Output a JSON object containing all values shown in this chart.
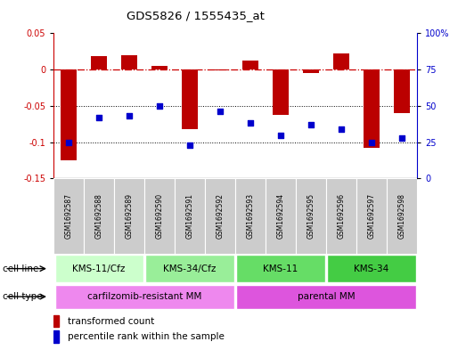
{
  "title": "GDS5826 / 1555435_at",
  "samples": [
    "GSM1692587",
    "GSM1692588",
    "GSM1692589",
    "GSM1692590",
    "GSM1692591",
    "GSM1692592",
    "GSM1692593",
    "GSM1692594",
    "GSM1692595",
    "GSM1692596",
    "GSM1692597",
    "GSM1692598"
  ],
  "bar_values": [
    -0.125,
    0.018,
    0.02,
    0.005,
    -0.082,
    -0.001,
    0.013,
    -0.062,
    -0.005,
    0.022,
    -0.108,
    -0.06
  ],
  "dot_values": [
    25,
    42,
    43,
    50,
    23,
    46,
    38,
    30,
    37,
    34,
    25,
    28
  ],
  "bar_color": "#bb0000",
  "dot_color": "#0000cc",
  "ylim_left": [
    -0.15,
    0.05
  ],
  "ylim_right": [
    0,
    100
  ],
  "yticks_left": [
    -0.15,
    -0.1,
    -0.05,
    0.0,
    0.05
  ],
  "yticks_right": [
    0,
    25,
    50,
    75,
    100
  ],
  "cell_line_groups": [
    {
      "label": "KMS-11/Cfz",
      "start": 0,
      "end": 3,
      "color": "#ccffcc"
    },
    {
      "label": "KMS-34/Cfz",
      "start": 3,
      "end": 6,
      "color": "#99ee99"
    },
    {
      "label": "KMS-11",
      "start": 6,
      "end": 9,
      "color": "#66dd66"
    },
    {
      "label": "KMS-34",
      "start": 9,
      "end": 12,
      "color": "#44cc44"
    }
  ],
  "cell_type_groups": [
    {
      "label": "carfilzomib-resistant MM",
      "start": 0,
      "end": 6,
      "color": "#ee88ee"
    },
    {
      "label": "parental MM",
      "start": 6,
      "end": 12,
      "color": "#dd55dd"
    }
  ],
  "cell_line_label": "cell line",
  "cell_type_label": "cell type",
  "legend_bar": "transformed count",
  "legend_dot": "percentile rank within the sample",
  "hline_zero_color": "#cc0000",
  "grid_color": "#000000",
  "bg_color": "#ffffff",
  "sample_bg": "#cccccc",
  "sample_sep": "#ffffff"
}
